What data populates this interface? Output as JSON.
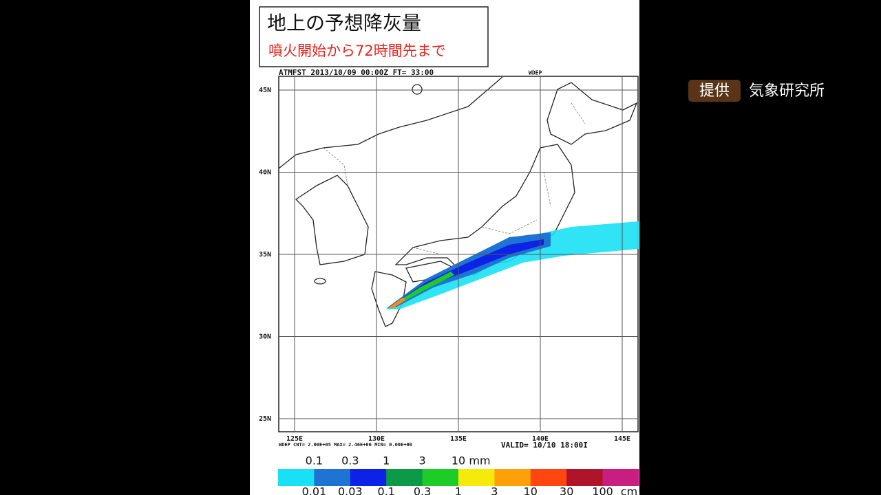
{
  "title": "地上の予想降灰量",
  "subtitle": "噴火開始から72時間先まで",
  "map": {
    "header": "ATMFST 2013/10/09 00:00Z FT= 33:00",
    "variable": "WDEP",
    "lat_labels": [
      "45N",
      "40N",
      "35N",
      "30N",
      "25N"
    ],
    "lon_labels": [
      "125E",
      "130E",
      "135E",
      "140E",
      "145E"
    ],
    "footer": "WDEP CNT= 2.00E+05 MAX= 2.46E+06 MIN= 0.00E+00",
    "valid": "VALID= 10/10 18:00I"
  },
  "legend": {
    "colors": [
      "#19e1f5",
      "#1e74d2",
      "#0c22e6",
      "#0c9a48",
      "#1ecc28",
      "#f5ea0a",
      "#ffa00a",
      "#ff4610",
      "#b0142a",
      "#c81e82"
    ],
    "mm_labels": [
      "0.1",
      "0.3",
      "1",
      "3",
      "10"
    ],
    "mm_unit": "mm",
    "cm_labels": [
      "0.01",
      "0.03",
      "0.1",
      "0.3",
      "1",
      "3",
      "10",
      "30",
      "100"
    ],
    "cm_unit": "cm"
  },
  "credit": {
    "label": "提供",
    "source": "気象研究所"
  }
}
